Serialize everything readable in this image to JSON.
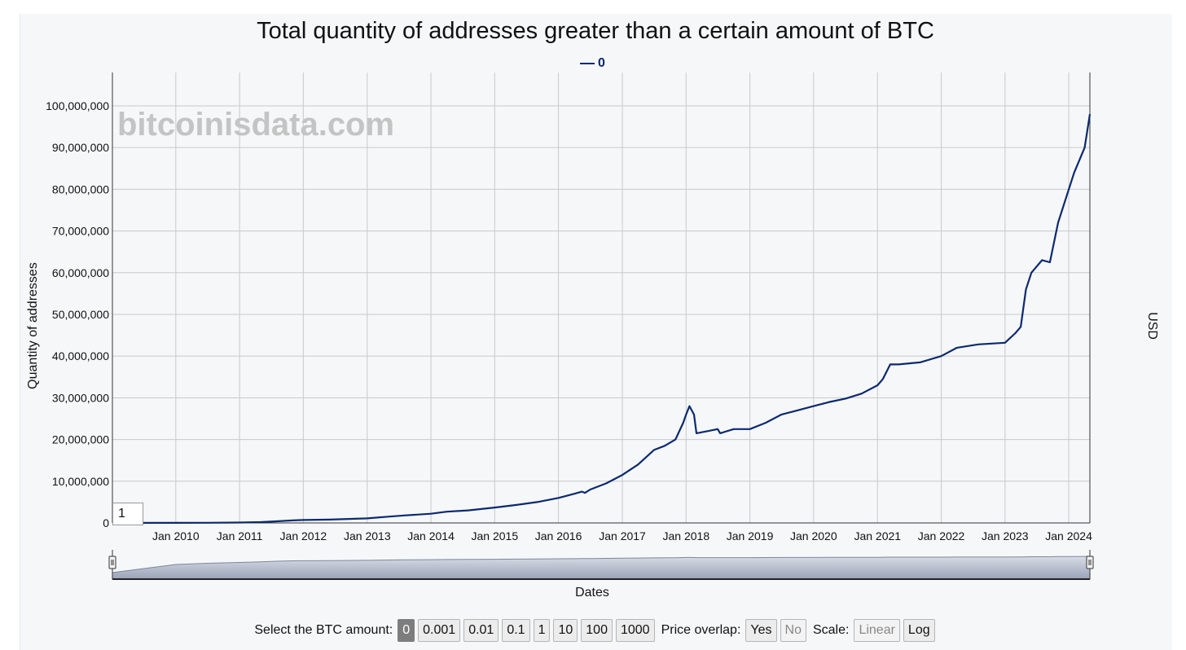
{
  "chart_data": {
    "type": "line",
    "title": "Total quantity of addresses greater than a certain amount of BTC",
    "legend": {
      "position": "top-center",
      "entries": [
        "0"
      ]
    },
    "xlabel": "Dates",
    "ylabel": "Quantity of addresses",
    "y2label": "USD",
    "watermark": "bitcoinisdata.com",
    "grid": true,
    "x_range": [
      "2009-01-03",
      "2024-05-01"
    ],
    "ylim": [
      0,
      108000000
    ],
    "x_ticks": [
      "Jan 2010",
      "Jan 2011",
      "Jan 2012",
      "Jan 2013",
      "Jan 2014",
      "Jan 2015",
      "Jan 2016",
      "Jan 2017",
      "Jan 2018",
      "Jan 2019",
      "Jan 2020",
      "Jan 2021",
      "Jan 2022",
      "Jan 2023",
      "Jan 2024"
    ],
    "y_ticks": [
      "0",
      "10,000,000",
      "20,000,000",
      "30,000,000",
      "40,000,000",
      "50,000,000",
      "60,000,000",
      "70,000,000",
      "80,000,000",
      "90,000,000",
      "100,000,000"
    ],
    "series": [
      {
        "name": "0",
        "color": "#0b2a6e",
        "points": [
          [
            "2009-01-03",
            0
          ],
          [
            "2010-01-01",
            10000
          ],
          [
            "2010-07-01",
            40000
          ],
          [
            "2011-01-01",
            100000
          ],
          [
            "2011-05-01",
            200000
          ],
          [
            "2011-08-01",
            400000
          ],
          [
            "2011-11-01",
            600000
          ],
          [
            "2012-01-01",
            700000
          ],
          [
            "2012-06-01",
            800000
          ],
          [
            "2013-01-01",
            1100000
          ],
          [
            "2013-05-01",
            1500000
          ],
          [
            "2013-08-01",
            1800000
          ],
          [
            "2014-01-01",
            2200000
          ],
          [
            "2014-04-01",
            2700000
          ],
          [
            "2014-08-01",
            3000000
          ],
          [
            "2015-01-01",
            3700000
          ],
          [
            "2015-05-01",
            4300000
          ],
          [
            "2015-09-01",
            5000000
          ],
          [
            "2016-01-01",
            6000000
          ],
          [
            "2016-04-01",
            7000000
          ],
          [
            "2016-05-15",
            7500000
          ],
          [
            "2016-06-01",
            7200000
          ],
          [
            "2016-07-01",
            8000000
          ],
          [
            "2016-10-01",
            9500000
          ],
          [
            "2017-01-01",
            11500000
          ],
          [
            "2017-04-01",
            14000000
          ],
          [
            "2017-07-01",
            17500000
          ],
          [
            "2017-09-01",
            18500000
          ],
          [
            "2017-11-01",
            20000000
          ],
          [
            "2017-12-15",
            24000000
          ],
          [
            "2018-01-01",
            26000000
          ],
          [
            "2018-01-20",
            28000000
          ],
          [
            "2018-02-15",
            26000000
          ],
          [
            "2018-03-01",
            21500000
          ],
          [
            "2018-05-01",
            22000000
          ],
          [
            "2018-07-01",
            22500000
          ],
          [
            "2018-07-15",
            21500000
          ],
          [
            "2018-10-01",
            22500000
          ],
          [
            "2019-01-01",
            22500000
          ],
          [
            "2019-04-01",
            24000000
          ],
          [
            "2019-07-01",
            26000000
          ],
          [
            "2019-10-01",
            27000000
          ],
          [
            "2020-01-01",
            28000000
          ],
          [
            "2020-04-01",
            29000000
          ],
          [
            "2020-07-01",
            29800000
          ],
          [
            "2020-10-01",
            31000000
          ],
          [
            "2021-01-01",
            33000000
          ],
          [
            "2021-02-01",
            34500000
          ],
          [
            "2021-03-15",
            38000000
          ],
          [
            "2021-05-01",
            38000000
          ],
          [
            "2021-09-01",
            38500000
          ],
          [
            "2022-01-01",
            40000000
          ],
          [
            "2022-04-01",
            42000000
          ],
          [
            "2022-08-01",
            42800000
          ],
          [
            "2023-01-01",
            43200000
          ],
          [
            "2023-03-01",
            45500000
          ],
          [
            "2023-04-01",
            47000000
          ],
          [
            "2023-05-01",
            56000000
          ],
          [
            "2023-06-01",
            60000000
          ],
          [
            "2023-08-01",
            63000000
          ],
          [
            "2023-09-15",
            62500000
          ],
          [
            "2023-11-01",
            72000000
          ],
          [
            "2024-01-01",
            80000000
          ],
          [
            "2024-02-01",
            84000000
          ],
          [
            "2024-04-01",
            90000000
          ],
          [
            "2024-05-01",
            98000000
          ]
        ]
      }
    ]
  },
  "range_selector": {
    "value": "1"
  },
  "controls": {
    "btc_label": "Select the BTC amount:",
    "btc_options": [
      "0",
      "0.001",
      "0.01",
      "0.1",
      "1",
      "10",
      "100",
      "1000"
    ],
    "btc_selected": "0",
    "overlap_label": "Price overlap:",
    "overlap_yes": "Yes",
    "overlap_no": "No",
    "overlap_selected": "Yes",
    "scale_label": "Scale:",
    "scale_linear": "Linear",
    "scale_log": "Log",
    "scale_selected": "Log"
  }
}
